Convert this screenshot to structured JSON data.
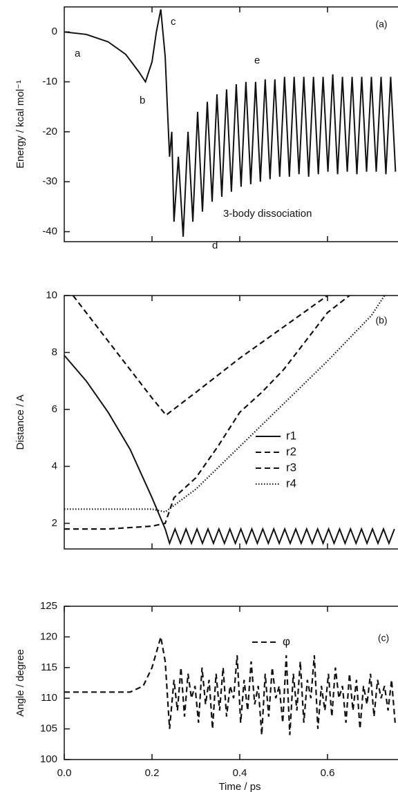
{
  "chart_data": [
    {
      "type": "line",
      "panel_label": "(a)",
      "y_label": "Energy / kcal mol⁻¹",
      "xlim": [
        0,
        0.76
      ],
      "ylim": [
        -42,
        5
      ],
      "xticks": [
        0.2,
        0.4,
        0.6
      ],
      "yticks": [
        0,
        -10,
        -20,
        -30,
        -40
      ],
      "annotations": [
        "a",
        "b",
        "c",
        "d",
        "e",
        "3-body dissociation"
      ],
      "series": [
        {
          "color": "#111111",
          "dash": "solid",
          "x": [
            0,
            0.05,
            0.1,
            0.14,
            0.17,
            0.185,
            0.2,
            0.21,
            0.22,
            0.23,
            0.235,
            0.24,
            0.245,
            0.25,
            0.26,
            0.271,
            0.282,
            0.293,
            0.304,
            0.315,
            0.326,
            0.337,
            0.348,
            0.359,
            0.37,
            0.381,
            0.392,
            0.403,
            0.414,
            0.425,
            0.436,
            0.447,
            0.458,
            0.469,
            0.48,
            0.491,
            0.502,
            0.513,
            0.524,
            0.535,
            0.546,
            0.557,
            0.568,
            0.579,
            0.59,
            0.601,
            0.612,
            0.623,
            0.634,
            0.645,
            0.656,
            0.667,
            0.678,
            0.689,
            0.7,
            0.711,
            0.722,
            0.733,
            0.744,
            0.755
          ],
          "values": [
            0,
            -0.5,
            -2,
            -4.5,
            -8,
            -10,
            -6,
            0,
            4.5,
            -5,
            -15,
            -25,
            -20,
            -38,
            -25,
            -41,
            -20,
            -38,
            -16,
            -36,
            -14,
            -34,
            -12.5,
            -33,
            -11.5,
            -32,
            -10.5,
            -31,
            -10,
            -30.5,
            -10,
            -30,
            -9.5,
            -29.5,
            -9.5,
            -29,
            -9,
            -29,
            -9,
            -28.5,
            -9,
            -29,
            -9,
            -28.5,
            -9,
            -28,
            -8.5,
            -28.5,
            -9,
            -28,
            -9,
            -28.5,
            -9,
            -28,
            -9,
            -28,
            -9,
            -28.5,
            -9,
            -28
          ]
        }
      ]
    },
    {
      "type": "line",
      "panel_label": "(b)",
      "y_label": "Distance / A",
      "xlim": [
        0,
        0.76
      ],
      "ylim": [
        1.1,
        10
      ],
      "xticks": [
        0.2,
        0.4,
        0.6
      ],
      "yticks": [
        2,
        4,
        6,
        8,
        10
      ],
      "series": [
        {
          "name": "r1",
          "color": "#111111",
          "dash": "solid",
          "x": [
            0,
            0.05,
            0.1,
            0.15,
            0.2,
            0.23,
            0.24,
            0.2525,
            0.265,
            0.2775,
            0.29,
            0.3025,
            0.315,
            0.3275,
            0.34,
            0.3525,
            0.365,
            0.3775,
            0.39,
            0.4025,
            0.415,
            0.4275,
            0.44,
            0.4525,
            0.465,
            0.4775,
            0.49,
            0.5025,
            0.515,
            0.5275,
            0.54,
            0.5525,
            0.565,
            0.5775,
            0.59,
            0.6025,
            0.615,
            0.6275,
            0.64,
            0.6525,
            0.665,
            0.6775,
            0.69,
            0.7025,
            0.715,
            0.7275,
            0.74,
            0.7525
          ],
          "values": [
            7.9,
            7.0,
            5.9,
            4.6,
            2.9,
            1.8,
            1.3,
            1.8,
            1.3,
            1.8,
            1.3,
            1.8,
            1.3,
            1.8,
            1.3,
            1.8,
            1.3,
            1.8,
            1.3,
            1.8,
            1.3,
            1.8,
            1.3,
            1.8,
            1.3,
            1.8,
            1.3,
            1.8,
            1.3,
            1.8,
            1.3,
            1.8,
            1.3,
            1.8,
            1.3,
            1.8,
            1.3,
            1.8,
            1.3,
            1.8,
            1.3,
            1.8,
            1.3,
            1.8,
            1.3,
            1.8,
            1.3,
            1.8
          ]
        },
        {
          "name": "r2",
          "color": "#111111",
          "dash": "dashed",
          "x": [
            0.02,
            0.1,
            0.2,
            0.232,
            0.3,
            0.4,
            0.5,
            0.6
          ],
          "values": [
            10,
            8.4,
            6.4,
            5.8,
            6.6,
            7.8,
            8.9,
            10
          ]
        },
        {
          "name": "r3",
          "color": "#111111",
          "dash": "dashed",
          "x": [
            0,
            0.1,
            0.2,
            0.23,
            0.25,
            0.3,
            0.35,
            0.4,
            0.45,
            0.5,
            0.55,
            0.6,
            0.65
          ],
          "values": [
            1.8,
            1.8,
            1.9,
            2.0,
            2.9,
            3.6,
            4.7,
            5.9,
            6.6,
            7.4,
            8.4,
            9.4,
            10
          ]
        },
        {
          "name": "r4",
          "color": "#111111",
          "dash": "dotted",
          "x": [
            0,
            0.2,
            0.23,
            0.3,
            0.4,
            0.5,
            0.6,
            0.7,
            0.73
          ],
          "values": [
            2.5,
            2.5,
            2.4,
            3.2,
            4.7,
            6.2,
            7.7,
            9.3,
            10
          ]
        }
      ]
    },
    {
      "type": "line",
      "panel_label": "(c)",
      "y_label": "Angle / degree",
      "x_label": "Time / ps",
      "xlim": [
        0,
        0.76
      ],
      "ylim": [
        100,
        125
      ],
      "xticks": [
        {
          "value": 0,
          "label": "0.0"
        },
        {
          "value": 0.2,
          "label": "0.2"
        },
        {
          "value": 0.4,
          "label": "0.4"
        },
        {
          "value": 0.6,
          "label": "0.6"
        }
      ],
      "yticks": [
        100,
        105,
        110,
        115,
        120,
        125
      ],
      "series": [
        {
          "name": "φ",
          "color": "#111111",
          "dash": "dashed",
          "x": [
            0,
            0.15,
            0.18,
            0.2,
            0.22,
            0.23,
            0.24,
            0.25,
            0.258,
            0.266,
            0.274,
            0.282,
            0.29,
            0.298,
            0.306,
            0.314,
            0.322,
            0.33,
            0.338,
            0.346,
            0.354,
            0.362,
            0.37,
            0.378,
            0.386,
            0.394,
            0.402,
            0.41,
            0.418,
            0.426,
            0.434,
            0.442,
            0.45,
            0.458,
            0.466,
            0.474,
            0.482,
            0.49,
            0.498,
            0.506,
            0.514,
            0.522,
            0.53,
            0.538,
            0.546,
            0.554,
            0.562,
            0.57,
            0.578,
            0.586,
            0.594,
            0.602,
            0.61,
            0.618,
            0.626,
            0.634,
            0.642,
            0.65,
            0.658,
            0.666,
            0.674,
            0.682,
            0.69,
            0.698,
            0.706,
            0.714,
            0.722,
            0.73,
            0.738,
            0.746,
            0.754
          ],
          "values": [
            111,
            111,
            112,
            115,
            120,
            116,
            105,
            113,
            108,
            115,
            107,
            114,
            110,
            112,
            106,
            115,
            109,
            113,
            105,
            114,
            108,
            115,
            107,
            112,
            110,
            117,
            106,
            113,
            108,
            116,
            109,
            112,
            104,
            114,
            107,
            115,
            110,
            112,
            106,
            117,
            104,
            114,
            108,
            116,
            106,
            113,
            110,
            117,
            105,
            112,
            108,
            114,
            107,
            115,
            110,
            112,
            106,
            114,
            108,
            113,
            105,
            112,
            109,
            114,
            107,
            113,
            110,
            112,
            108,
            113,
            106
          ]
        }
      ]
    }
  ]
}
